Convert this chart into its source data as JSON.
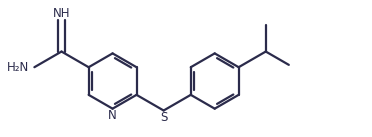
{
  "bg_color": "#ffffff",
  "line_color": "#2b2b4b",
  "line_width": 1.6,
  "font_size_atoms": 8.5,
  "figsize": [
    3.72,
    1.37
  ],
  "dpi": 100,
  "xlim": [
    0,
    10
  ],
  "ylim": [
    0,
    3.68
  ]
}
